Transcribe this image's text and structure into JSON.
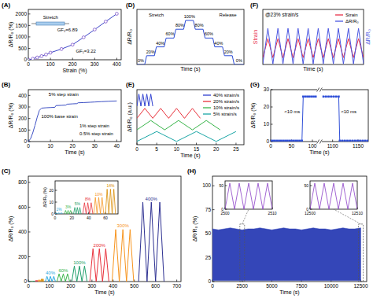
{
  "chart_data": [
    {
      "panel_label": "(A)",
      "type": "scatter",
      "xlabel": "Strain (%)",
      "ylabel": "ΔR/R₀ (%)",
      "xlim": [
        0,
        420
      ],
      "ylim": [
        0,
        2200
      ],
      "xticks": [
        0,
        100,
        200,
        300,
        400
      ],
      "yticks": [
        0,
        500,
        1000,
        1500,
        2000
      ],
      "annotations": [
        "GF₁=3.22",
        "GF₂=6.89",
        "Stretch"
      ],
      "series": [
        {
          "color": "#3c46c8",
          "marker": "circle",
          "line_style": "solid",
          "x": [
            0,
            20,
            40,
            60,
            80,
            100,
            150,
            200,
            250,
            300,
            350,
            400
          ],
          "values": [
            0,
            45,
            100,
            160,
            230,
            310,
            470,
            660,
            980,
            1320,
            1670,
            2010
          ]
        }
      ]
    },
    {
      "panel_label": "(B)",
      "type": "line",
      "xlabel": "Time (s)",
      "ylabel": "ΔR/R₀ (%)",
      "xlim": [
        0,
        42
      ],
      "ylim": [
        0,
        450
      ],
      "xticks": [
        0,
        10,
        20,
        30,
        40
      ],
      "yticks": [
        0,
        100,
        200,
        300,
        400
      ],
      "annotations": [
        "100% base strain",
        "5% step strain",
        "1% step strain",
        "0.5% step strain"
      ],
      "series": [
        {
          "color": "#3c4fc4",
          "x": [
            0,
            1,
            2,
            3,
            4,
            5,
            6,
            8,
            10,
            12,
            12.5,
            15,
            17,
            17.5,
            20,
            22,
            22.5,
            25,
            28,
            30,
            33,
            36,
            40
          ],
          "values": [
            0,
            25,
            75,
            140,
            210,
            270,
            290,
            293,
            295,
            297,
            312,
            314,
            316,
            324,
            327,
            329,
            336,
            338,
            341,
            343,
            346,
            349,
            352
          ]
        }
      ]
    },
    {
      "panel_label": "(C)",
      "type": "line",
      "xlabel": "Time (s)",
      "ylabel": "ΔR/R₀ (%)",
      "xlim": [
        0,
        720
      ],
      "ylim": [
        0,
        850
      ],
      "xticks": [
        0,
        100,
        200,
        300,
        400,
        500,
        600,
        700
      ],
      "yticks": [
        0,
        200,
        400,
        600,
        800
      ],
      "series": [
        {
          "name": "40%",
          "color": "#27a9e1",
          "x": [
            80,
            88,
            96,
            104,
            112,
            120,
            128
          ],
          "values": [
            0,
            42,
            0,
            42,
            0,
            42,
            0
          ]
        },
        {
          "name": "60%",
          "color": "#39b54a",
          "x": [
            135,
            145,
            155,
            165,
            175,
            185,
            195
          ],
          "values": [
            0,
            62,
            0,
            62,
            0,
            62,
            0
          ]
        },
        {
          "name": "100%",
          "color": "#1e9e6a",
          "x": [
            205,
            217,
            229,
            241,
            253,
            265,
            277
          ],
          "values": [
            0,
            125,
            0,
            125,
            0,
            125,
            0
          ]
        },
        {
          "name": "200%",
          "color": "#e8303a",
          "x": [
            290,
            305,
            320,
            335,
            350,
            365,
            380
          ],
          "values": [
            0,
            265,
            0,
            265,
            0,
            265,
            0
          ]
        },
        {
          "name": "300%",
          "color": "#f7941d",
          "x": [
            395,
            412,
            429,
            446,
            463,
            480,
            497
          ],
          "values": [
            0,
            420,
            0,
            420,
            0,
            420,
            0
          ]
        },
        {
          "name": "400%",
          "color": "#2e3192",
          "x": [
            520,
            540,
            560,
            580,
            600,
            620,
            640
          ],
          "values": [
            0,
            640,
            0,
            640,
            0,
            640,
            0
          ]
        }
      ],
      "inset": {
        "ylabel": "ΔR/R₀ (%)",
        "xlim": [
          0,
          75
        ],
        "ylim": [
          0,
          28
        ],
        "xticks": [
          0,
          20,
          40,
          60
        ],
        "yticks": [
          0,
          10,
          20
        ],
        "series": [
          {
            "name": "1%",
            "color": "#27a9e1",
            "x": [
              0,
              1.5,
              3,
              4.5,
              6,
              7.5,
              9
            ],
            "values": [
              0,
              1,
              0,
              1,
              0,
              1,
              0
            ]
          },
          {
            "name": "3%",
            "color": "#39b54a",
            "x": [
              11,
              12.5,
              14,
              15.5,
              17,
              18.5,
              20
            ],
            "values": [
              0,
              3,
              0,
              3,
              0,
              3,
              0
            ]
          },
          {
            "name": "5%",
            "color": "#1e9e6a",
            "x": [
              22,
              23.5,
              25,
              26.5,
              28,
              29.5,
              31
            ],
            "values": [
              0,
              5.5,
              0,
              5.5,
              0,
              5.5,
              0
            ]
          },
          {
            "name": "8%",
            "color": "#e8303a",
            "x": [
              33,
              35,
              37,
              39,
              41,
              43,
              45
            ],
            "values": [
              0,
              9.5,
              0,
              9.5,
              0,
              9.5,
              0
            ]
          },
          {
            "name": "10%",
            "color": "#f7941d",
            "x": [
              46,
              48,
              50,
              52,
              54,
              56,
              58
            ],
            "values": [
              0,
              14,
              0,
              14,
              0,
              14,
              0
            ]
          },
          {
            "name": "14%",
            "color": "#d98c00",
            "x": [
              60,
              62,
              64,
              66,
              68,
              70,
              72
            ],
            "values": [
              0,
              21,
              0,
              21,
              0,
              21,
              0
            ]
          }
        ]
      }
    },
    {
      "panel_label": "(D)",
      "type": "line",
      "xlabel": "Time (s)",
      "ylabel": "ΔR/R₀",
      "xlim": [
        0,
        110
      ],
      "ylim": [
        0,
        125
      ],
      "tick_labels": false,
      "annotations": [
        "Stretch",
        "Release"
      ],
      "step_labels": [
        "0%",
        "20%",
        "40%",
        "60%",
        "80%",
        "100%",
        "80%",
        "60%",
        "40%",
        "20%",
        "0%"
      ],
      "series": [
        {
          "color": "#2b4bd6",
          "x": [
            0,
            8,
            10,
            18,
            20,
            28,
            30,
            38,
            40,
            48,
            50,
            58,
            60,
            68,
            70,
            78,
            80,
            88,
            90,
            98,
            100,
            110
          ],
          "values": [
            0,
            0,
            20,
            20,
            40,
            40,
            60,
            60,
            80,
            80,
            100,
            100,
            80,
            80,
            60,
            60,
            40,
            40,
            20,
            20,
            0,
            0
          ]
        }
      ]
    },
    {
      "panel_label": "(E)",
      "type": "line",
      "xlabel": "Time (s)",
      "ylabel": "ΔR/R₀ (a.u.)",
      "xlim": [
        0,
        27
      ],
      "ylim": [
        0,
        5
      ],
      "xticks": [
        0,
        5,
        10,
        15,
        20,
        25
      ],
      "tick_labels": "x",
      "legend": "upper right",
      "series": [
        {
          "name": "40% strain/s",
          "color": "#2e3fd0",
          "x": [
            0,
            0.5,
            1,
            1.5,
            2,
            2.5,
            3,
            3.5,
            4
          ],
          "values": [
            3.5,
            4.6,
            3.5,
            4.6,
            3.5,
            4.6,
            3.5,
            4.6,
            3.5
          ]
        },
        {
          "name": "20% strain/s",
          "color": "#e8303a",
          "x": [
            0,
            2,
            4,
            6,
            8,
            10,
            12,
            14,
            16
          ],
          "values": [
            2.4,
            3.3,
            2.4,
            3.3,
            2.4,
            3.3,
            2.4,
            3.3,
            2.4
          ]
        },
        {
          "name": "10% strain/s",
          "color": "#39b54a",
          "x": [
            0,
            3.5,
            7,
            10.5,
            14,
            17.5,
            21
          ],
          "values": [
            1.35,
            2.2,
            1.35,
            2.2,
            1.35,
            2.2,
            1.35
          ]
        },
        {
          "name": "5% strain/s",
          "color": "#1aa6a6",
          "x": [
            0,
            5,
            10,
            15,
            20,
            25
          ],
          "values": [
            0.3,
            1.2,
            0.3,
            1.2,
            0.3,
            1.2
          ]
        }
      ]
    },
    {
      "panel_label": "(F)",
      "type": "line",
      "title": "@23% strain/s",
      "xlabel": "Time (s)",
      "ylabel": "Strain",
      "y2label": "ΔR/R₀",
      "xlim": [
        0,
        20
      ],
      "ylim": [
        0,
        1.6
      ],
      "y2lim": [
        0,
        1.6
      ],
      "tick_labels": false,
      "legend": "upper right",
      "series": [
        {
          "name": "Strain",
          "color": "#e8304a",
          "x": [
            0,
            1,
            2,
            3,
            4,
            5,
            6,
            7,
            8,
            9,
            10,
            11,
            12,
            13,
            14,
            15,
            16,
            17,
            18,
            19,
            20
          ],
          "values": [
            0.2,
            0.75,
            0.2,
            0.75,
            0.2,
            0.75,
            0.2,
            0.75,
            0.2,
            0.75,
            0.2,
            0.75,
            0.2,
            0.75,
            0.2,
            0.75,
            0.2,
            0.75,
            0.2,
            0.75,
            0.2
          ]
        },
        {
          "name": "ΔR/R₀",
          "color": "#4a55e0",
          "axis": "y2",
          "x": [
            0,
            1,
            2,
            3,
            4,
            5,
            6,
            7,
            8,
            9,
            10,
            11,
            12,
            13,
            14,
            15,
            16,
            17,
            18,
            19,
            20
          ],
          "values": [
            0.02,
            1.05,
            0.02,
            1.05,
            0.02,
            1.05,
            0.02,
            1.05,
            0.02,
            1.05,
            0.02,
            1.05,
            0.02,
            1.05,
            0.02,
            1.05,
            0.02,
            1.05,
            0.02,
            1.05,
            0.02
          ]
        }
      ]
    },
    {
      "panel_label": "(G)",
      "type": "line",
      "xlabel": "Time (s)",
      "ylabel": "ΔR/R₀ (%)",
      "xlim": [
        0,
        1170
      ],
      "x_break": [
        110,
        1080
      ],
      "ylim": [
        0,
        30
      ],
      "xticks": [
        0,
        50,
        100,
        1100,
        1150
      ],
      "yticks": [
        0,
        10,
        20,
        30
      ],
      "annotations": [
        "<10 ms",
        "<10 ms"
      ],
      "series": [
        {
          "color": "#2f4fd8",
          "marker": "square",
          "x": [
            0,
            5,
            10,
            15,
            20,
            25,
            30,
            35,
            40,
            45,
            50,
            55,
            60,
            65,
            70,
            75,
            78,
            83,
            88,
            93,
            98,
            103,
            108,
            1082,
            1087,
            1092,
            1097,
            1102,
            1107,
            1112,
            1114,
            1119,
            1124,
            1129,
            1134,
            1139,
            1144,
            1149,
            1154,
            1159,
            1164,
            1169
          ],
          "values": [
            0.5,
            0.5,
            0.5,
            0.5,
            0.5,
            0.5,
            0.5,
            0.5,
            0.5,
            0.5,
            0.5,
            0.5,
            0.5,
            0.5,
            0.5,
            0.5,
            26,
            26,
            26,
            26,
            26,
            26,
            26,
            26,
            26,
            26,
            26,
            26,
            26,
            26,
            0.5,
            0.5,
            0.5,
            0.5,
            0.5,
            0.5,
            0.5,
            0.5,
            0.5,
            0.5,
            0.5,
            0.5
          ]
        }
      ]
    },
    {
      "panel_label": "(H)",
      "type": "band",
      "xlabel": "Time (s)",
      "ylabel": "ΔR/R₀ (%)",
      "xlim": [
        0,
        13000
      ],
      "ylim": [
        0,
        110
      ],
      "xticks": [
        0,
        2500,
        5000,
        7500,
        10000,
        12500
      ],
      "yticks": [
        0,
        25,
        50,
        75,
        100
      ],
      "series": [
        {
          "color": "#3446b8",
          "x": [
            0,
            500,
            1000,
            1500,
            2000,
            2500,
            3000,
            3500,
            4000,
            4500,
            5000,
            5500,
            6000,
            6500,
            7000,
            7500,
            8000,
            8500,
            9000,
            9500,
            10000,
            10500,
            11000,
            11500,
            12000,
            12500
          ],
          "values": [
            55,
            54,
            55,
            56,
            55,
            54,
            55,
            55,
            56,
            55,
            54,
            55,
            56,
            55,
            55,
            54,
            55,
            56,
            55,
            55,
            54,
            55,
            56,
            55,
            55,
            56
          ],
          "lower": [
            1,
            1,
            1,
            1,
            1,
            1,
            1,
            1,
            1,
            1,
            1,
            1,
            1,
            1,
            1,
            1,
            1,
            1,
            1,
            1,
            1,
            1,
            1,
            1,
            1,
            1
          ]
        }
      ],
      "insets": [
        {
          "xlim": [
            2500,
            2510
          ],
          "ylim": [
            0,
            60
          ],
          "xticks": [
            2500,
            2510
          ],
          "yticks": [
            0,
            50
          ],
          "series": [
            {
              "color": "#8a3fc8",
              "x": [
                2500,
                2501,
                2502,
                2503,
                2504,
                2505,
                2506,
                2507,
                2508,
                2509,
                2510
              ],
              "values": [
                0,
                55,
                0,
                55,
                0,
                55,
                0,
                55,
                0,
                55,
                0
              ]
            }
          ]
        },
        {
          "xlim": [
            12500,
            12510
          ],
          "ylim": [
            0,
            60
          ],
          "xticks": [
            12500,
            12510
          ],
          "yticks": [
            0,
            50
          ],
          "series": [
            {
              "color": "#8a3fc8",
              "x": [
                12500,
                12501,
                12502,
                12503,
                12504,
                12505,
                12506,
                12507,
                12508,
                12509,
                12510
              ],
              "values": [
                0,
                55,
                0,
                55,
                0,
                55,
                0,
                55,
                0,
                55,
                0
              ]
            }
          ]
        }
      ]
    }
  ]
}
